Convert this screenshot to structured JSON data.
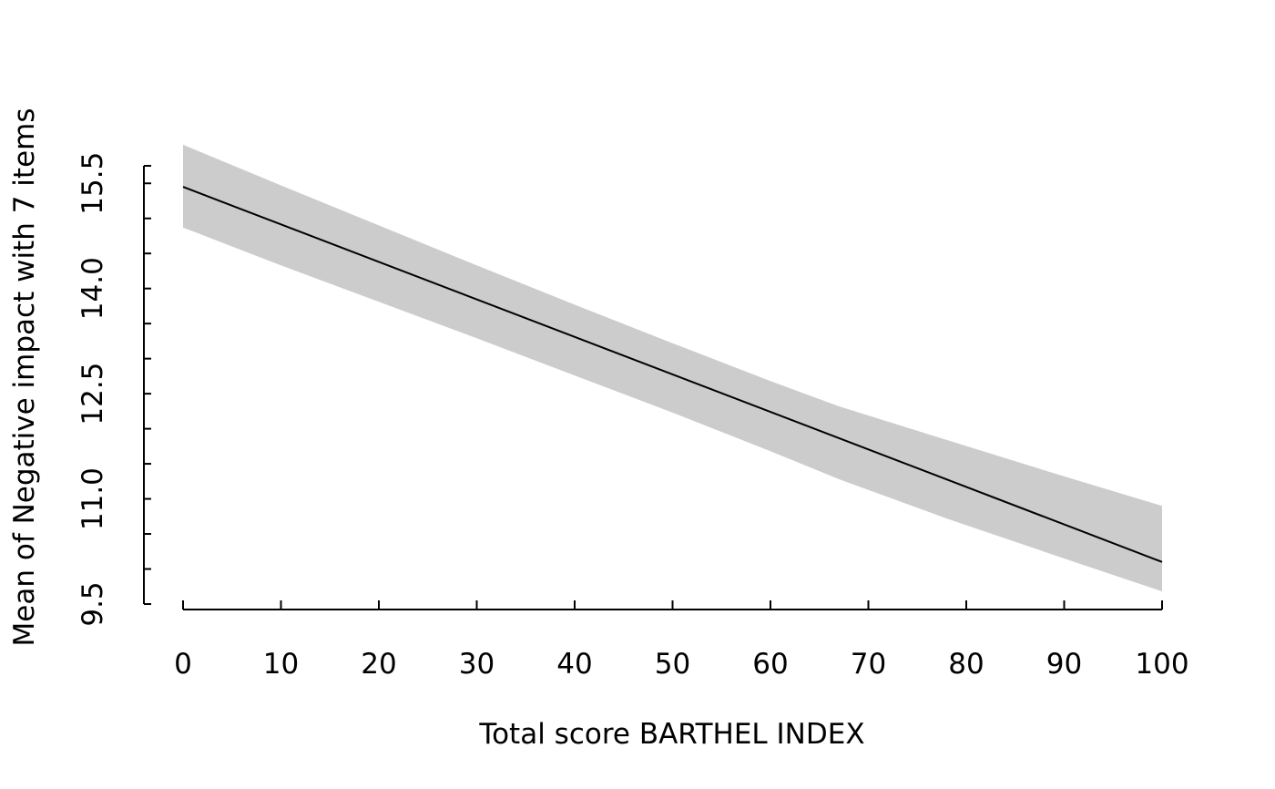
{
  "chart_data": {
    "type": "line",
    "title": "",
    "xlabel": "Total score BARTHEL INDEX",
    "ylabel": "Mean of Negative impact with 7 items",
    "xlim": [
      0,
      100
    ],
    "ylim": [
      9.5,
      15.75
    ],
    "x_ticks": [
      0,
      10,
      20,
      30,
      40,
      50,
      60,
      70,
      80,
      90,
      100
    ],
    "y_ticks": [
      9.5,
      11.0,
      12.5,
      14.0,
      15.5
    ],
    "y_minor_ticks": [
      9.5,
      10.0,
      10.5,
      11.0,
      11.5,
      12.0,
      12.5,
      13.0,
      13.5,
      14.0,
      14.5,
      15.0,
      15.5,
      16.0
    ],
    "y_tick_labels": [
      "9.5",
      "11.0",
      "12.5",
      "14.0",
      "15.5"
    ],
    "x_tick_labels": [
      "0",
      "10",
      "20",
      "30",
      "40",
      "50",
      "60",
      "70",
      "80",
      "90",
      "100"
    ],
    "grid": false,
    "legend": "none",
    "series": [
      {
        "x": [
          0,
          100
        ],
        "y": [
          15.45,
          10.1
        ],
        "color": "#000000"
      }
    ],
    "confidence_band": {
      "x": [
        0,
        10,
        20,
        30,
        40,
        50,
        60,
        67,
        78,
        90,
        100
      ],
      "upper": [
        16.05,
        15.47,
        14.9,
        14.33,
        13.77,
        13.22,
        12.68,
        12.32,
        11.84,
        11.32,
        10.9
      ],
      "lower": [
        14.87,
        14.33,
        13.81,
        13.29,
        12.76,
        12.23,
        11.68,
        11.28,
        10.72,
        10.15,
        9.68
      ],
      "color": "#cccccc"
    }
  }
}
